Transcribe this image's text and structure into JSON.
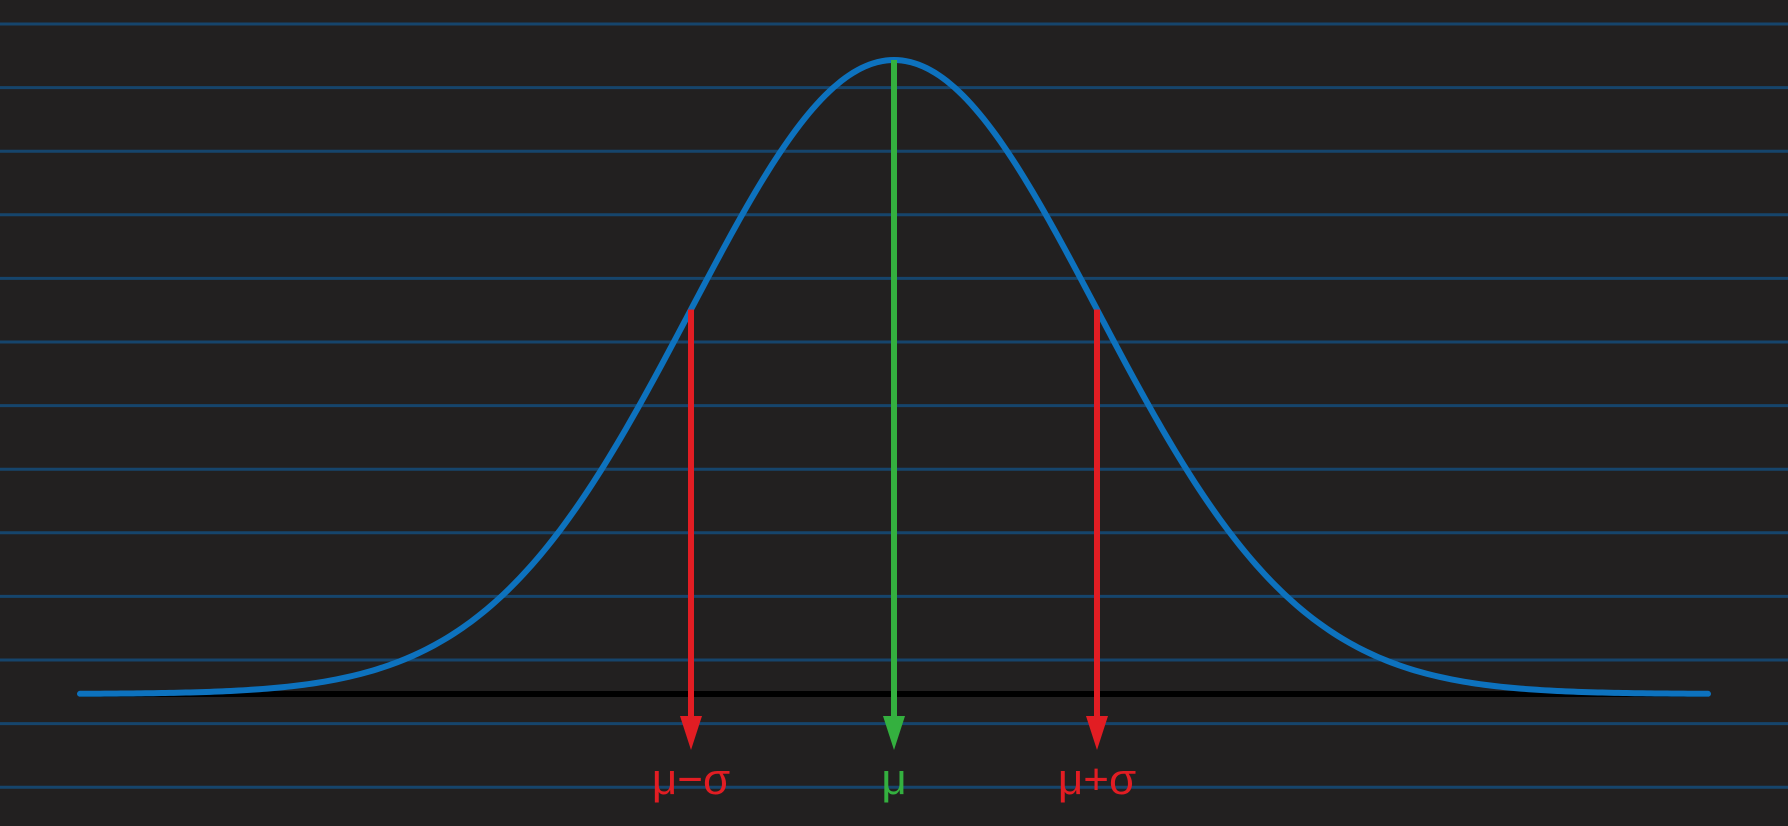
{
  "diagram": {
    "distribution": "normal",
    "mean": 0,
    "sigma": 1,
    "x_range": [
      -4,
      4
    ],
    "markers": [
      {
        "key": "minus_sigma",
        "value_in_sigma": -1,
        "label": "μ−σ",
        "color": "#e21d23"
      },
      {
        "key": "mean",
        "value_in_sigma": 0,
        "label": "μ",
        "color": "#34b03f"
      },
      {
        "key": "plus_sigma",
        "value_in_sigma": 1,
        "label": "μ+σ",
        "color": "#e21d23"
      }
    ],
    "colors": {
      "background": "#222020",
      "gridlines": "#16456c",
      "curve": "#0d72be",
      "baseline": "#000000"
    }
  }
}
